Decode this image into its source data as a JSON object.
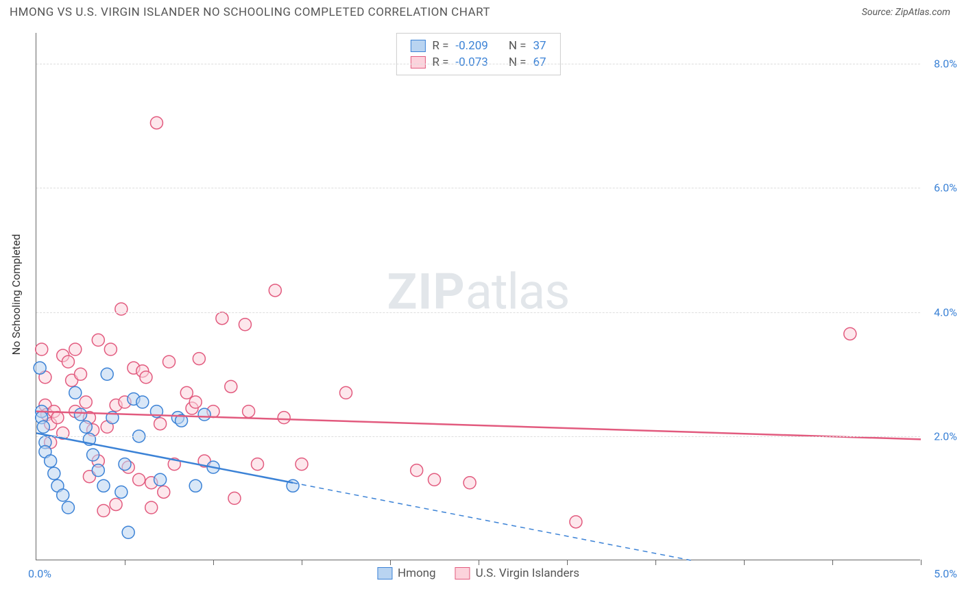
{
  "title": "HMONG VS U.S. VIRGIN ISLANDER NO SCHOOLING COMPLETED CORRELATION CHART",
  "source": "Source: ZipAtlas.com",
  "y_axis_title": "No Schooling Completed",
  "watermark": {
    "bold": "ZIP",
    "rest": "atlas"
  },
  "x_axis": {
    "min": 0.0,
    "max": 5.0,
    "start_label": "0.0%",
    "end_label": "5.0%",
    "tick_positions": [
      0.5,
      1.0,
      1.5,
      2.0,
      2.5,
      3.0,
      3.5,
      4.0,
      4.5,
      5.0
    ]
  },
  "y_axis": {
    "min": 0.0,
    "max": 8.5,
    "gridlines": [
      2.0,
      4.0,
      6.0,
      8.0
    ],
    "tick_labels": {
      "2.0": "2.0%",
      "4.0": "4.0%",
      "6.0": "6.0%",
      "8.0": "8.0%"
    }
  },
  "colors": {
    "blue_fill": "#b9d4f1",
    "blue_stroke": "#3b82d6",
    "pink_fill": "#fcd3dc",
    "pink_stroke": "#e25a7e",
    "grid": "#dddddd",
    "axis": "#666666",
    "text": "#555555",
    "value": "#3b82d6",
    "background": "#ffffff"
  },
  "series": [
    {
      "name": "Hmong",
      "color_fill": "#b9d4f1",
      "color_stroke": "#3b82d6",
      "R": "-0.209",
      "N": "37",
      "trend": {
        "x1": 0.0,
        "y1": 2.05,
        "x2": 1.45,
        "y2": 1.25,
        "x2_dash": 3.7,
        "y2_dash": 0.0
      },
      "points": [
        [
          0.02,
          3.1
        ],
        [
          0.03,
          2.4
        ],
        [
          0.03,
          2.3
        ],
        [
          0.04,
          2.15
        ],
        [
          0.05,
          1.9
        ],
        [
          0.05,
          1.75
        ],
        [
          0.08,
          1.6
        ],
        [
          0.1,
          1.4
        ],
        [
          0.12,
          1.2
        ],
        [
          0.15,
          1.05
        ],
        [
          0.18,
          0.85
        ],
        [
          0.22,
          2.7
        ],
        [
          0.25,
          2.35
        ],
        [
          0.28,
          2.15
        ],
        [
          0.3,
          1.95
        ],
        [
          0.32,
          1.7
        ],
        [
          0.35,
          1.45
        ],
        [
          0.38,
          1.2
        ],
        [
          0.4,
          3.0
        ],
        [
          0.43,
          2.3
        ],
        [
          0.48,
          1.1
        ],
        [
          0.5,
          1.55
        ],
        [
          0.52,
          0.45
        ],
        [
          0.55,
          2.6
        ],
        [
          0.58,
          2.0
        ],
        [
          0.6,
          2.55
        ],
        [
          0.68,
          2.4
        ],
        [
          0.7,
          1.3
        ],
        [
          0.8,
          2.3
        ],
        [
          0.82,
          2.25
        ],
        [
          0.9,
          1.2
        ],
        [
          0.95,
          2.35
        ],
        [
          1.0,
          1.5
        ],
        [
          1.45,
          1.2
        ]
      ]
    },
    {
      "name": "U.S. Virgin Islanders",
      "color_fill": "#fcd3dc",
      "color_stroke": "#e25a7e",
      "R": "-0.073",
      "N": "67",
      "trend": {
        "x1": 0.0,
        "y1": 2.4,
        "x2": 5.0,
        "y2": 1.95
      },
      "points": [
        [
          0.03,
          3.4
        ],
        [
          0.05,
          2.95
        ],
        [
          0.05,
          2.5
        ],
        [
          0.06,
          2.35
        ],
        [
          0.08,
          2.2
        ],
        [
          0.08,
          1.9
        ],
        [
          0.1,
          2.4
        ],
        [
          0.12,
          2.3
        ],
        [
          0.15,
          3.3
        ],
        [
          0.15,
          2.05
        ],
        [
          0.18,
          3.2
        ],
        [
          0.2,
          2.9
        ],
        [
          0.22,
          2.4
        ],
        [
          0.22,
          3.4
        ],
        [
          0.25,
          3.0
        ],
        [
          0.28,
          2.55
        ],
        [
          0.3,
          2.3
        ],
        [
          0.3,
          1.35
        ],
        [
          0.32,
          2.1
        ],
        [
          0.35,
          3.55
        ],
        [
          0.35,
          1.6
        ],
        [
          0.38,
          0.8
        ],
        [
          0.4,
          2.15
        ],
        [
          0.42,
          3.4
        ],
        [
          0.45,
          2.5
        ],
        [
          0.45,
          0.9
        ],
        [
          0.48,
          4.05
        ],
        [
          0.5,
          2.55
        ],
        [
          0.52,
          1.5
        ],
        [
          0.55,
          3.1
        ],
        [
          0.58,
          1.3
        ],
        [
          0.6,
          3.05
        ],
        [
          0.62,
          2.95
        ],
        [
          0.65,
          1.25
        ],
        [
          0.65,
          0.85
        ],
        [
          0.68,
          7.05
        ],
        [
          0.7,
          2.2
        ],
        [
          0.72,
          1.1
        ],
        [
          0.75,
          3.2
        ],
        [
          0.78,
          1.55
        ],
        [
          0.85,
          2.7
        ],
        [
          0.88,
          2.45
        ],
        [
          0.9,
          2.55
        ],
        [
          0.92,
          3.25
        ],
        [
          0.95,
          1.6
        ],
        [
          1.0,
          2.4
        ],
        [
          1.05,
          3.9
        ],
        [
          1.1,
          2.8
        ],
        [
          1.12,
          1.0
        ],
        [
          1.18,
          3.8
        ],
        [
          1.2,
          2.4
        ],
        [
          1.25,
          1.55
        ],
        [
          1.35,
          4.35
        ],
        [
          1.4,
          2.3
        ],
        [
          1.5,
          1.55
        ],
        [
          1.75,
          2.7
        ],
        [
          2.15,
          1.45
        ],
        [
          2.25,
          1.3
        ],
        [
          2.45,
          1.25
        ],
        [
          3.05,
          0.62
        ],
        [
          4.6,
          3.65
        ]
      ]
    }
  ],
  "legend_items": [
    "Hmong",
    "U.S. Virgin Islanders"
  ],
  "marker_radius": 9,
  "marker_opacity": 0.55,
  "line_width_trend": 2.5
}
